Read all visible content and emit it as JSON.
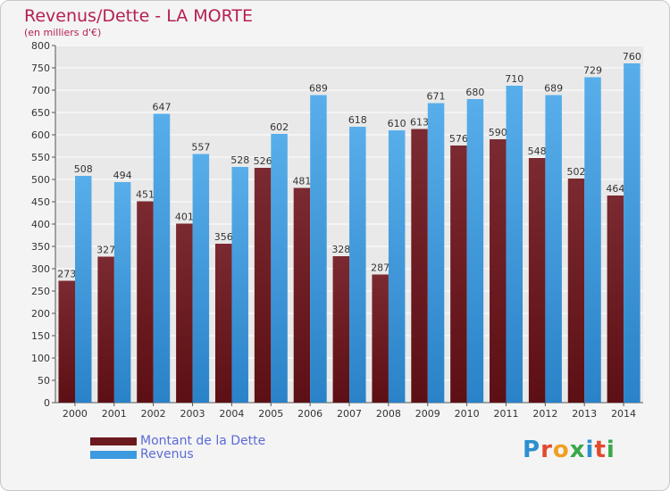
{
  "title": "Revenus/Dette - LA MORTE",
  "subtitle": "(en milliers d'€)",
  "logo": {
    "text": "Proxiti",
    "colors": [
      "#2c8fcf",
      "#e2492d",
      "#f0a020",
      "#3aa84a",
      "#2c8fcf",
      "#e2492d",
      "#3aa84a"
    ]
  },
  "colors": {
    "dette": "#6b1a1f",
    "revenus": "#3b9ae0",
    "axis_text": "#333333",
    "grid": "#ffffff",
    "background": "#f4f4f4",
    "title": "#b5204f",
    "legend_text": "#5b6bd5"
  },
  "chart_data": {
    "type": "bar",
    "title": "Revenus/Dette - LA MORTE",
    "ylabel": "(en milliers d'€)",
    "xlabel": "",
    "categories": [
      "2000",
      "2001",
      "2002",
      "2003",
      "2004",
      "2005",
      "2006",
      "2007",
      "2008",
      "2009",
      "2010",
      "2011",
      "2012",
      "2013",
      "2014"
    ],
    "series": [
      {
        "name": "Montant de la Dette",
        "values": [
          273,
          327,
          451,
          401,
          356,
          526,
          481,
          328,
          287,
          613,
          576,
          590,
          548,
          502,
          464
        ]
      },
      {
        "name": "Revenus",
        "values": [
          508,
          494,
          647,
          557,
          528,
          602,
          689,
          618,
          610,
          671,
          680,
          710,
          689,
          729,
          760
        ]
      }
    ],
    "ylim": [
      0,
      800
    ],
    "ytick_step": 50,
    "grid": true,
    "legend_position": "bottom-left"
  }
}
